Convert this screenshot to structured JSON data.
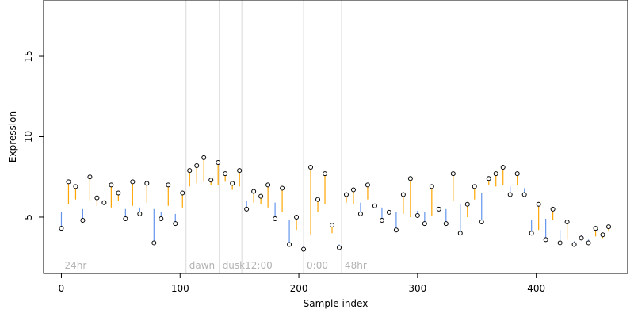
{
  "chart_data": {
    "type": "scatter",
    "xlabel": "Sample index",
    "ylabel": "Expression",
    "xlim": [
      -15,
      477
    ],
    "ylim": [
      1.5,
      18.5
    ],
    "xticks": [
      0,
      100,
      200,
      300,
      400
    ],
    "yticks": [
      5,
      10,
      15
    ],
    "grid": false,
    "phase_markers": [
      {
        "label": "24hr",
        "start": 0,
        "end": 105
      },
      {
        "label": "dawn",
        "start": 105,
        "end": 133
      },
      {
        "label": "dusk",
        "start": 133,
        "end": 152
      },
      {
        "label": "12:00",
        "start": 152,
        "end": 204
      },
      {
        "label": "0:00",
        "start": 204,
        "end": 236
      },
      {
        "label": "48hr",
        "start": 236,
        "end": 462
      }
    ],
    "colors": {
      "above": "#FFA500",
      "below": "#6495ED",
      "points": "#000000",
      "phase_lines": "#D9D9D9",
      "phase_labels": "#B3B3B3",
      "axes": "#000000"
    },
    "series": [
      {
        "x": [
          0,
          6,
          12,
          18,
          24,
          30,
          36,
          42,
          48,
          54,
          60,
          66,
          72,
          78,
          84,
          90,
          96,
          102,
          108,
          114,
          120,
          126,
          132,
          138,
          144,
          150,
          156,
          162,
          168,
          174,
          180,
          186,
          192,
          198,
          204,
          210,
          216,
          222,
          228,
          234,
          240,
          246,
          252,
          258,
          264,
          270,
          276,
          282,
          288,
          294,
          300,
          306,
          312,
          318,
          324,
          330,
          336,
          342,
          348,
          354,
          360,
          366,
          372,
          378,
          384,
          390,
          396,
          402,
          408,
          414,
          420,
          426,
          432,
          438,
          444,
          450,
          456,
          461
        ],
        "baseline": [
          5.3,
          5.8,
          6.1,
          5.5,
          6.0,
          5.7,
          5.9,
          5.6,
          6.0,
          5.5,
          5.7,
          5.6,
          5.9,
          5.5,
          5.3,
          5.7,
          5.2,
          5.6,
          6.9,
          7.1,
          7.2,
          7.0,
          7.0,
          7.2,
          6.7,
          6.9,
          6.0,
          5.9,
          5.8,
          5.6,
          5.9,
          5.3,
          4.8,
          4.2,
          3.2,
          3.9,
          5.3,
          5.8,
          4.0,
          3.3,
          5.9,
          5.8,
          5.9,
          6.1,
          5.7,
          5.6,
          5.2,
          5.3,
          5.2,
          5.0,
          5.4,
          5.3,
          5.1,
          5.6,
          5.5,
          6.0,
          5.8,
          5.0,
          6.1,
          6.5,
          7.0,
          6.9,
          7.0,
          6.9,
          7.0,
          6.8,
          4.8,
          4.2,
          4.9,
          4.8,
          4.2,
          3.6,
          3.5,
          3.9,
          3.6,
          3.8,
          3.7,
          4.1
        ],
        "values": [
          4.3,
          7.2,
          6.9,
          4.8,
          7.5,
          6.2,
          5.9,
          7.0,
          6.5,
          4.9,
          7.2,
          5.2,
          7.1,
          3.4,
          4.9,
          7.0,
          4.6,
          6.5,
          7.9,
          8.2,
          8.7,
          7.3,
          8.4,
          7.7,
          7.1,
          7.9,
          5.5,
          6.6,
          6.3,
          7.0,
          4.9,
          6.8,
          3.3,
          5.0,
          3.0,
          8.1,
          6.1,
          7.7,
          4.5,
          3.1,
          6.4,
          6.7,
          5.2,
          7.0,
          5.7,
          4.8,
          5.3,
          4.2,
          6.4,
          7.4,
          5.1,
          4.6,
          6.9,
          5.5,
          4.6,
          7.7,
          4.0,
          5.8,
          6.9,
          4.7,
          7.4,
          7.7,
          8.1,
          6.4,
          7.7,
          6.4,
          4.0,
          5.8,
          3.6,
          5.5,
          3.4,
          4.7,
          3.3,
          3.7,
          3.4,
          4.3,
          3.9,
          4.4
        ]
      }
    ]
  }
}
